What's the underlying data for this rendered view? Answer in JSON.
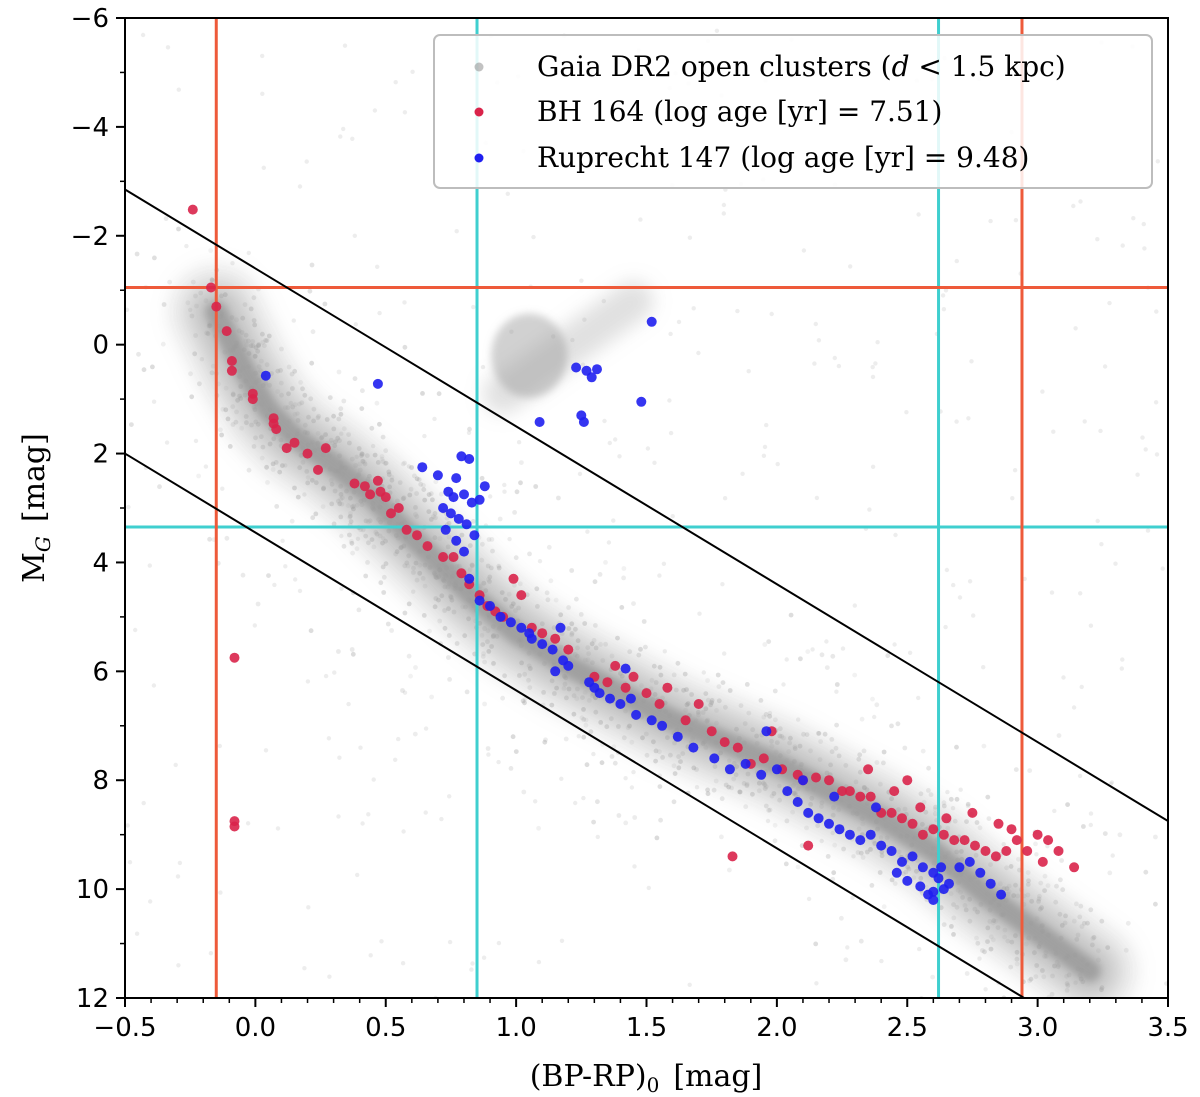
{
  "chart_data": {
    "type": "scatter",
    "title": "",
    "xlabel": "(BP-RP)",
    "xlabel_sub": "0",
    "xlabel_unit": "[mag]",
    "ylabel": "M",
    "ylabel_sub": "G",
    "ylabel_unit": "[mag]",
    "xlim": [
      -0.5,
      3.5
    ],
    "ylim": [
      12,
      -6
    ],
    "y_inverted": true,
    "grid": false,
    "legend_placement": "top-right",
    "x_ticks": [
      -0.5,
      0.0,
      0.5,
      1.0,
      1.5,
      2.0,
      2.5,
      3.0,
      3.5
    ],
    "x_tick_labels": [
      "−0.5",
      "0.0",
      "0.5",
      "1.0",
      "1.5",
      "2.0",
      "2.5",
      "3.0",
      "3.5"
    ],
    "y_ticks": [
      -6,
      -4,
      -2,
      0,
      2,
      4,
      6,
      8,
      10,
      12
    ],
    "y_tick_labels": [
      "−6",
      "−4",
      "−2",
      "0",
      "2",
      "4",
      "6",
      "8",
      "10",
      "12"
    ],
    "reference_lines": {
      "vertical_red": [
        -0.15,
        2.94
      ],
      "horizontal_red": [
        -1.05
      ],
      "vertical_cyan": [
        0.85,
        2.62
      ],
      "horizontal_cyan": [
        3.35
      ]
    },
    "diagonal_lines": [
      {
        "name": "upper-boundary",
        "x": [
          -0.5,
          3.5
        ],
        "y": [
          -2.85,
          8.75
        ]
      },
      {
        "name": "lower-boundary",
        "x": [
          -0.5,
          3.5
        ],
        "y": [
          2.0,
          13.6
        ]
      }
    ],
    "colors": {
      "background_cluster": "#9a9a9a",
      "bh164": "#d9234a",
      "ruprecht147": "#1f1ff0",
      "red_lines": "#ee5a3a",
      "cyan_lines": "#3fcfcf",
      "diagonal": "#000000"
    },
    "series": [
      {
        "name": "Gaia DR2 open clusters",
        "legend_label": "Gaia DR2 open clusters (d < 1.5 kpc)",
        "legend_parts": [
          "Gaia DR2 open clusters (",
          "d",
          " < 1.5 kpc)"
        ],
        "kind": "density",
        "main_sequence_ridge": {
          "x": [
            -0.15,
            -0.05,
            0.05,
            0.15,
            0.3,
            0.45,
            0.55,
            0.7,
            0.85,
            1.0,
            1.2,
            1.4,
            1.6,
            1.8,
            2.0,
            2.2,
            2.4,
            2.6,
            2.8,
            3.0,
            3.2
          ],
          "y": [
            -0.6,
            0.4,
            1.2,
            1.7,
            2.2,
            2.8,
            3.3,
            4.0,
            4.7,
            5.3,
            5.9,
            6.4,
            6.9,
            7.3,
            7.7,
            8.2,
            8.7,
            9.3,
            10.1,
            10.8,
            11.5
          ]
        },
        "red_clump": {
          "x": 1.05,
          "y": 0.2
        },
        "giant_branch": {
          "x": [
            0.95,
            1.45
          ],
          "y": [
            0.9,
            -0.8
          ]
        }
      },
      {
        "name": "BH 164",
        "legend_label": "BH 164 (log age [yr] = 7.51)",
        "log_age": 7.51,
        "points": [
          [
            -0.24,
            -2.48
          ],
          [
            -0.17,
            -1.05
          ],
          [
            -0.15,
            -0.7
          ],
          [
            -0.11,
            -0.25
          ],
          [
            -0.09,
            0.3
          ],
          [
            -0.09,
            0.48
          ],
          [
            -0.01,
            0.9
          ],
          [
            -0.01,
            1.0
          ],
          [
            0.07,
            1.35
          ],
          [
            0.07,
            1.45
          ],
          [
            0.08,
            1.55
          ],
          [
            0.12,
            1.9
          ],
          [
            0.15,
            1.8
          ],
          [
            0.2,
            2.0
          ],
          [
            0.24,
            2.3
          ],
          [
            0.27,
            1.9
          ],
          [
            0.38,
            2.55
          ],
          [
            0.42,
            2.6
          ],
          [
            0.44,
            2.75
          ],
          [
            0.47,
            2.5
          ],
          [
            0.48,
            2.7
          ],
          [
            0.5,
            2.8
          ],
          [
            0.52,
            3.1
          ],
          [
            0.55,
            3.0
          ],
          [
            0.58,
            3.4
          ],
          [
            0.62,
            3.5
          ],
          [
            0.66,
            3.7
          ],
          [
            0.72,
            3.9
          ],
          [
            0.76,
            3.9
          ],
          [
            0.79,
            4.2
          ],
          [
            0.82,
            4.4
          ],
          [
            0.86,
            4.6
          ],
          [
            0.89,
            4.8
          ],
          [
            0.92,
            4.9
          ],
          [
            0.95,
            5.0
          ],
          [
            0.99,
            4.3
          ],
          [
            1.02,
            4.6
          ],
          [
            1.06,
            5.2
          ],
          [
            1.1,
            5.3
          ],
          [
            1.15,
            5.4
          ],
          [
            1.2,
            5.6
          ],
          [
            1.3,
            6.1
          ],
          [
            1.35,
            6.2
          ],
          [
            1.38,
            5.9
          ],
          [
            1.42,
            6.3
          ],
          [
            1.45,
            6.1
          ],
          [
            1.5,
            6.4
          ],
          [
            1.55,
            6.6
          ],
          [
            1.58,
            6.3
          ],
          [
            1.65,
            6.9
          ],
          [
            1.7,
            6.6
          ],
          [
            1.75,
            7.1
          ],
          [
            1.8,
            7.3
          ],
          [
            1.85,
            7.4
          ],
          [
            1.9,
            7.7
          ],
          [
            1.95,
            7.6
          ],
          [
            1.98,
            7.1
          ],
          [
            2.02,
            7.8
          ],
          [
            2.08,
            7.9
          ],
          [
            2.1,
            8.0
          ],
          [
            2.15,
            7.95
          ],
          [
            2.2,
            8.0
          ],
          [
            2.25,
            8.2
          ],
          [
            2.28,
            8.2
          ],
          [
            2.32,
            8.3
          ],
          [
            2.36,
            8.3
          ],
          [
            2.4,
            8.6
          ],
          [
            2.44,
            8.6
          ],
          [
            2.48,
            8.7
          ],
          [
            2.52,
            8.8
          ],
          [
            2.56,
            9.0
          ],
          [
            2.6,
            8.9
          ],
          [
            2.64,
            9.0
          ],
          [
            2.68,
            9.1
          ],
          [
            2.72,
            9.1
          ],
          [
            2.76,
            9.2
          ],
          [
            2.8,
            9.3
          ],
          [
            2.84,
            9.4
          ],
          [
            2.88,
            9.3
          ],
          [
            2.92,
            9.1
          ],
          [
            2.96,
            9.3
          ],
          [
            3.0,
            9.0
          ],
          [
            3.04,
            9.1
          ],
          [
            3.08,
            9.3
          ],
          [
            3.14,
            9.6
          ],
          [
            2.35,
            7.8
          ],
          [
            2.45,
            8.2
          ],
          [
            2.5,
            8.0
          ],
          [
            2.55,
            8.5
          ],
          [
            2.65,
            8.7
          ],
          [
            2.75,
            8.6
          ],
          [
            2.85,
            8.8
          ],
          [
            2.9,
            8.9
          ],
          [
            3.02,
            9.5
          ],
          [
            2.12,
            9.2
          ],
          [
            1.83,
            9.4
          ],
          [
            -0.08,
            5.75
          ],
          [
            -0.08,
            8.75
          ],
          [
            -0.08,
            8.85
          ]
        ]
      },
      {
        "name": "Ruprecht 147",
        "legend_label": "Ruprecht 147 (log age [yr] = 9.48)",
        "log_age": 9.48,
        "points": [
          [
            1.52,
            -0.42
          ],
          [
            1.23,
            0.42
          ],
          [
            1.27,
            0.48
          ],
          [
            1.31,
            0.45
          ],
          [
            1.29,
            0.6
          ],
          [
            1.25,
            1.3
          ],
          [
            1.26,
            1.42
          ],
          [
            1.48,
            1.05
          ],
          [
            1.09,
            1.42
          ],
          [
            0.47,
            0.72
          ],
          [
            0.04,
            0.57
          ],
          [
            0.64,
            2.25
          ],
          [
            0.7,
            2.4
          ],
          [
            0.77,
            2.45
          ],
          [
            0.82,
            2.1
          ],
          [
            0.79,
            2.05
          ],
          [
            0.74,
            2.7
          ],
          [
            0.76,
            2.8
          ],
          [
            0.8,
            2.75
          ],
          [
            0.83,
            2.9
          ],
          [
            0.72,
            3.0
          ],
          [
            0.75,
            3.1
          ],
          [
            0.78,
            3.2
          ],
          [
            0.81,
            3.3
          ],
          [
            0.73,
            3.4
          ],
          [
            0.77,
            3.6
          ],
          [
            0.8,
            3.8
          ],
          [
            0.84,
            3.5
          ],
          [
            0.86,
            2.85
          ],
          [
            0.88,
            2.6
          ],
          [
            0.82,
            4.3
          ],
          [
            0.86,
            4.7
          ],
          [
            0.9,
            4.8
          ],
          [
            0.94,
            5.0
          ],
          [
            0.98,
            5.1
          ],
          [
            1.02,
            5.2
          ],
          [
            1.06,
            5.4
          ],
          [
            1.1,
            5.5
          ],
          [
            1.14,
            5.6
          ],
          [
            1.18,
            5.8
          ],
          [
            1.2,
            5.9
          ],
          [
            1.05,
            5.3
          ],
          [
            1.15,
            6.0
          ],
          [
            1.17,
            5.2
          ],
          [
            1.28,
            6.2
          ],
          [
            1.32,
            6.4
          ],
          [
            1.36,
            6.5
          ],
          [
            1.4,
            6.6
          ],
          [
            1.46,
            6.8
          ],
          [
            1.52,
            6.9
          ],
          [
            1.56,
            7.0
          ],
          [
            1.62,
            7.2
          ],
          [
            1.68,
            7.4
          ],
          [
            1.76,
            7.6
          ],
          [
            1.82,
            7.8
          ],
          [
            1.88,
            7.7
          ],
          [
            1.94,
            7.9
          ],
          [
            2.0,
            7.8
          ],
          [
            2.04,
            8.2
          ],
          [
            2.08,
            8.4
          ],
          [
            2.12,
            8.6
          ],
          [
            2.16,
            8.7
          ],
          [
            2.2,
            8.8
          ],
          [
            2.24,
            8.9
          ],
          [
            2.28,
            9.0
          ],
          [
            2.32,
            9.1
          ],
          [
            2.36,
            9.0
          ],
          [
            2.4,
            9.2
          ],
          [
            2.44,
            9.3
          ],
          [
            2.48,
            9.5
          ],
          [
            2.52,
            9.4
          ],
          [
            2.56,
            9.6
          ],
          [
            2.6,
            9.7
          ],
          [
            2.62,
            9.8
          ],
          [
            2.64,
            10.0
          ],
          [
            2.58,
            10.1
          ],
          [
            2.6,
            10.2
          ],
          [
            2.66,
            9.9
          ],
          [
            2.7,
            9.6
          ],
          [
            2.74,
            9.5
          ],
          [
            2.78,
            9.7
          ],
          [
            2.82,
            9.9
          ],
          [
            2.86,
            10.1
          ],
          [
            2.38,
            8.5
          ],
          [
            2.22,
            8.3
          ],
          [
            2.1,
            8.0
          ],
          [
            1.96,
            7.1
          ],
          [
            1.44,
            6.5
          ],
          [
            1.42,
            5.95
          ],
          [
            1.3,
            6.3
          ],
          [
            2.46,
            9.7
          ],
          [
            2.5,
            9.85
          ],
          [
            2.55,
            9.95
          ],
          [
            2.6,
            10.05
          ],
          [
            2.63,
            9.6
          ]
        ]
      }
    ]
  }
}
